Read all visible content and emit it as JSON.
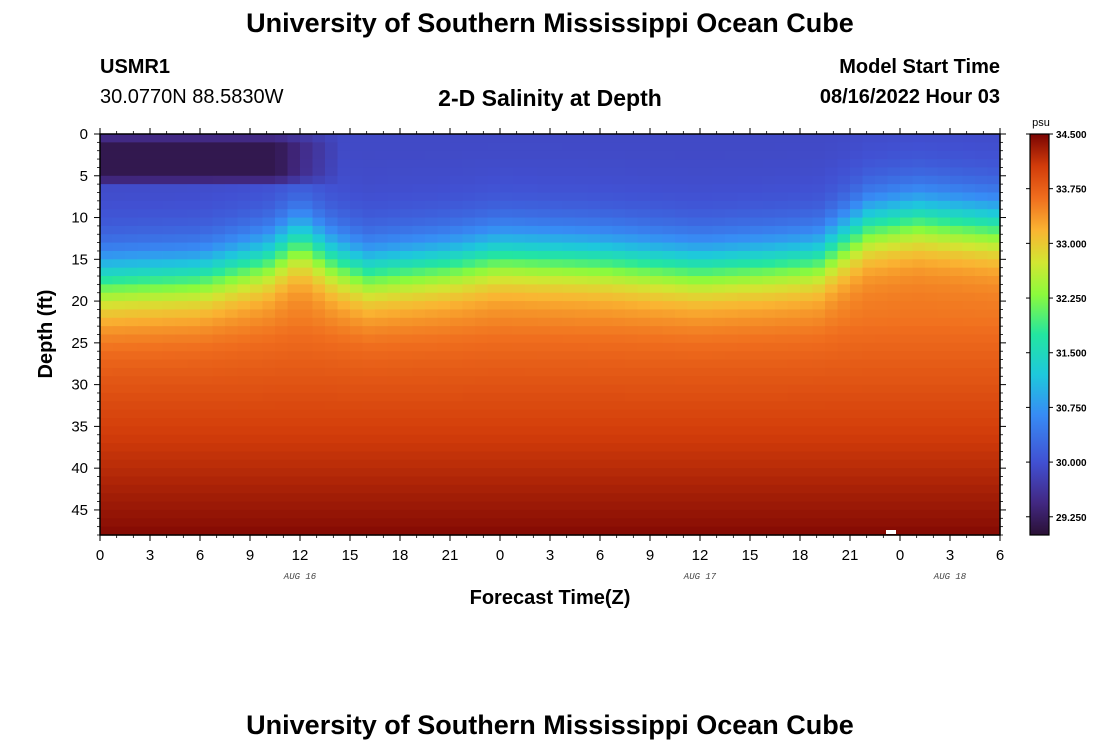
{
  "header": {
    "title_top": "University of Southern Mississippi Ocean Cube",
    "station": "USMR1",
    "coords": "30.0770N  88.5830W",
    "chart_title": "2-D Salinity at Depth",
    "model_label": "Model Start Time",
    "model_time": "08/16/2022 Hour 03",
    "title_bottom": "University of Southern Mississippi Ocean Cube"
  },
  "chart_data": {
    "type": "heatmap",
    "title": "2-D Salinity at Depth",
    "xlabel": "Forecast Time(Z)",
    "ylabel": "Depth (ft)",
    "x_range": [
      0,
      54
    ],
    "y_range": [
      0,
      48
    ],
    "x_ticks": [
      0,
      3,
      6,
      9,
      12,
      15,
      18,
      21,
      24,
      27,
      30,
      33,
      36,
      39,
      42,
      45,
      48,
      51,
      54
    ],
    "x_tick_labels": [
      "0",
      "3",
      "6",
      "9",
      "12",
      "15",
      "18",
      "21",
      "0",
      "3",
      "6",
      "9",
      "12",
      "15",
      "18",
      "21",
      "0",
      "3",
      "6"
    ],
    "y_ticks": [
      0,
      5,
      10,
      15,
      20,
      25,
      30,
      35,
      40,
      45
    ],
    "y_tick_labels": [
      "0",
      "5",
      "10",
      "15",
      "20",
      "25",
      "30",
      "35",
      "40",
      "45"
    ],
    "date_labels": [
      {
        "x": 12,
        "text": "AUG 16"
      },
      {
        "x": 36,
        "text": "AUG 17"
      },
      {
        "x": 51,
        "text": "AUG 18"
      }
    ],
    "colorbar": {
      "unit": "psu",
      "min": 29.0,
      "max": 34.5,
      "ticks": [
        34.5,
        33.75,
        33.0,
        32.25,
        31.5,
        30.75,
        30.0,
        29.25
      ],
      "tick_labels": [
        "34.500",
        "33.750",
        "33.000",
        "32.250",
        "31.500",
        "30.750",
        "30.000",
        "29.250"
      ]
    },
    "field_model": {
      "surface_value": 29.9,
      "deep_value": 34.45,
      "mid_value": 33.6,
      "halocline_depth_keypoints": [
        [
          0,
          17.5
        ],
        [
          6,
          17.0
        ],
        [
          10,
          15.0
        ],
        [
          12,
          12.5
        ],
        [
          14,
          15.0
        ],
        [
          16,
          16.5
        ],
        [
          21,
          15.5
        ],
        [
          24,
          14.5
        ],
        [
          30,
          15.0
        ],
        [
          36,
          16.0
        ],
        [
          40,
          15.5
        ],
        [
          43,
          15.0
        ],
        [
          46,
          11.0
        ],
        [
          49,
          10.0
        ],
        [
          54,
          11.0
        ]
      ],
      "fresh_patch": {
        "x_start": 0,
        "x_end": 13.5,
        "depth_top": 1,
        "depth_bottom": 5,
        "value": 29.15
      }
    }
  }
}
